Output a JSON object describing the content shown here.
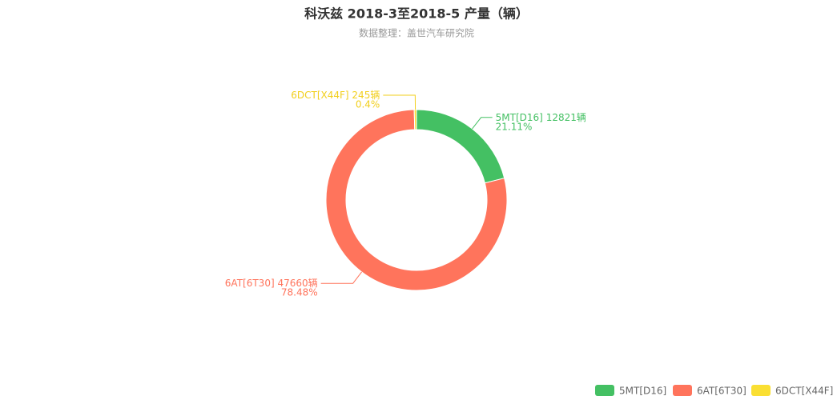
{
  "chart_data": {
    "type": "donut",
    "title": "科沃兹 2018-3至2018-5 产量（辆）",
    "subtitle": "数据整理：盖世汽车研究院",
    "categories": [
      "5MT[D16]",
      "6AT[6T30]",
      "6DCT[X44F]"
    ],
    "values": [
      12821,
      47660,
      245
    ],
    "value_labels": [
      "12821辆",
      "47660辆",
      "245辆"
    ],
    "percent_labels": [
      "21.11%",
      "78.48%",
      "0.4%"
    ],
    "colors": [
      "#44c063",
      "#ff745c",
      "#fadf33"
    ],
    "legend": "bottom-right"
  }
}
